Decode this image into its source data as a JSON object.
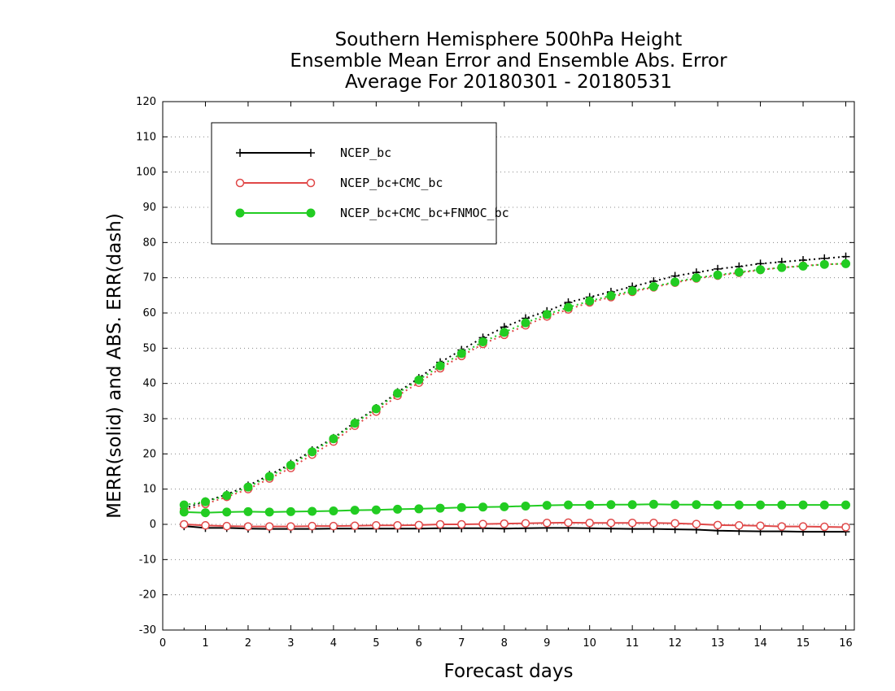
{
  "chart_data": {
    "type": "line",
    "title": "Southern Hemisphere 500hPa Height",
    "subtitle": "Ensemble Mean Error and Ensemble Abs. Error",
    "subtitle2": "Average For 20180301 - 20180531",
    "xlabel": "Forecast days",
    "ylabel": "MERR(solid) and ABS. ERR(dash)",
    "xlim": [
      0,
      16.2
    ],
    "ylim": [
      -30,
      120
    ],
    "xticks": [
      "0",
      "1",
      "2",
      "3",
      "4",
      "5",
      "6",
      "7",
      "8",
      "9",
      "10",
      "11",
      "12",
      "13",
      "14",
      "15",
      "16"
    ],
    "yticks": [
      "-30",
      "-20",
      "-10",
      "0",
      "10",
      "20",
      "30",
      "40",
      "50",
      "60",
      "70",
      "80",
      "90",
      "100",
      "110",
      "120"
    ],
    "grid": true,
    "legend_position": "top-left",
    "x": [
      0.5,
      1,
      1.5,
      2,
      2.5,
      3,
      3.5,
      4,
      4.5,
      5,
      5.5,
      6,
      6.5,
      7,
      7.5,
      8,
      8.5,
      9,
      9.5,
      10,
      10.5,
      11,
      11.5,
      12,
      12.5,
      13,
      13.5,
      14,
      14.5,
      15,
      15.5,
      16
    ],
    "series": [
      {
        "name": "NCEP_bc",
        "color": "#000000",
        "marker": "plus",
        "merr": [
          -0.5,
          -1,
          -1,
          -1.2,
          -1.3,
          -1.3,
          -1.3,
          -1.2,
          -1.2,
          -1.2,
          -1.2,
          -1.2,
          -1.1,
          -1.1,
          -1.1,
          -1.2,
          -1.1,
          -1,
          -1,
          -1.1,
          -1.2,
          -1.3,
          -1.3,
          -1.4,
          -1.5,
          -1.8,
          -1.9,
          -2,
          -2,
          -2.1,
          -2.1,
          -2.1
        ],
        "abs_err": [
          4.5,
          6.5,
          8.5,
          11,
          14,
          17.2,
          21,
          24.5,
          29,
          33,
          37.5,
          41.5,
          46,
          49.5,
          53,
          56,
          58.5,
          60.5,
          63,
          64.5,
          66,
          67.5,
          69,
          70.5,
          71.5,
          72.5,
          73.2,
          74,
          74.5,
          75,
          75.5,
          76
        ]
      },
      {
        "name": "NCEP_bc+CMC_bc",
        "color": "#e04848",
        "marker": "open-circle",
        "merr": [
          0,
          -0.3,
          -0.5,
          -0.6,
          -0.6,
          -0.6,
          -0.5,
          -0.5,
          -0.4,
          -0.3,
          -0.3,
          -0.2,
          0,
          0,
          0.1,
          0.2,
          0.3,
          0.4,
          0.5,
          0.4,
          0.4,
          0.4,
          0.4,
          0.3,
          0.1,
          -0.2,
          -0.3,
          -0.4,
          -0.6,
          -0.6,
          -0.7,
          -0.8
        ],
        "abs_err": [
          4,
          5.8,
          7.8,
          10,
          13,
          16,
          19.8,
          23.5,
          28,
          32,
          36.5,
          40.2,
          44.3,
          47.8,
          51.2,
          53.8,
          56.5,
          59,
          61,
          63,
          64.5,
          66,
          67.3,
          68.6,
          69.8,
          70.6,
          71.4,
          72.2,
          72.9,
          73.4,
          73.8,
          74
        ]
      },
      {
        "name": "NCEP_bc+CMC_bc+FNMOC_bc",
        "color": "#22cc22",
        "marker": "filled-circle",
        "merr": [
          3.5,
          3.3,
          3.5,
          3.6,
          3.5,
          3.6,
          3.7,
          3.8,
          4,
          4.1,
          4.3,
          4.4,
          4.6,
          4.8,
          4.9,
          5,
          5.2,
          5.4,
          5.5,
          5.5,
          5.6,
          5.6,
          5.7,
          5.6,
          5.6,
          5.5,
          5.5,
          5.5,
          5.5,
          5.5,
          5.5,
          5.5
        ],
        "abs_err": [
          5.5,
          6.4,
          8.2,
          10.6,
          13.6,
          16.8,
          20.6,
          24.3,
          28.7,
          32.8,
          37.2,
          41,
          45,
          48.5,
          51.8,
          54.5,
          57.2,
          59.6,
          61.6,
          63.4,
          64.9,
          66.3,
          67.5,
          68.8,
          70,
          70.8,
          71.6,
          72.3,
          72.9,
          73.3,
          73.8,
          74
        ]
      }
    ]
  }
}
